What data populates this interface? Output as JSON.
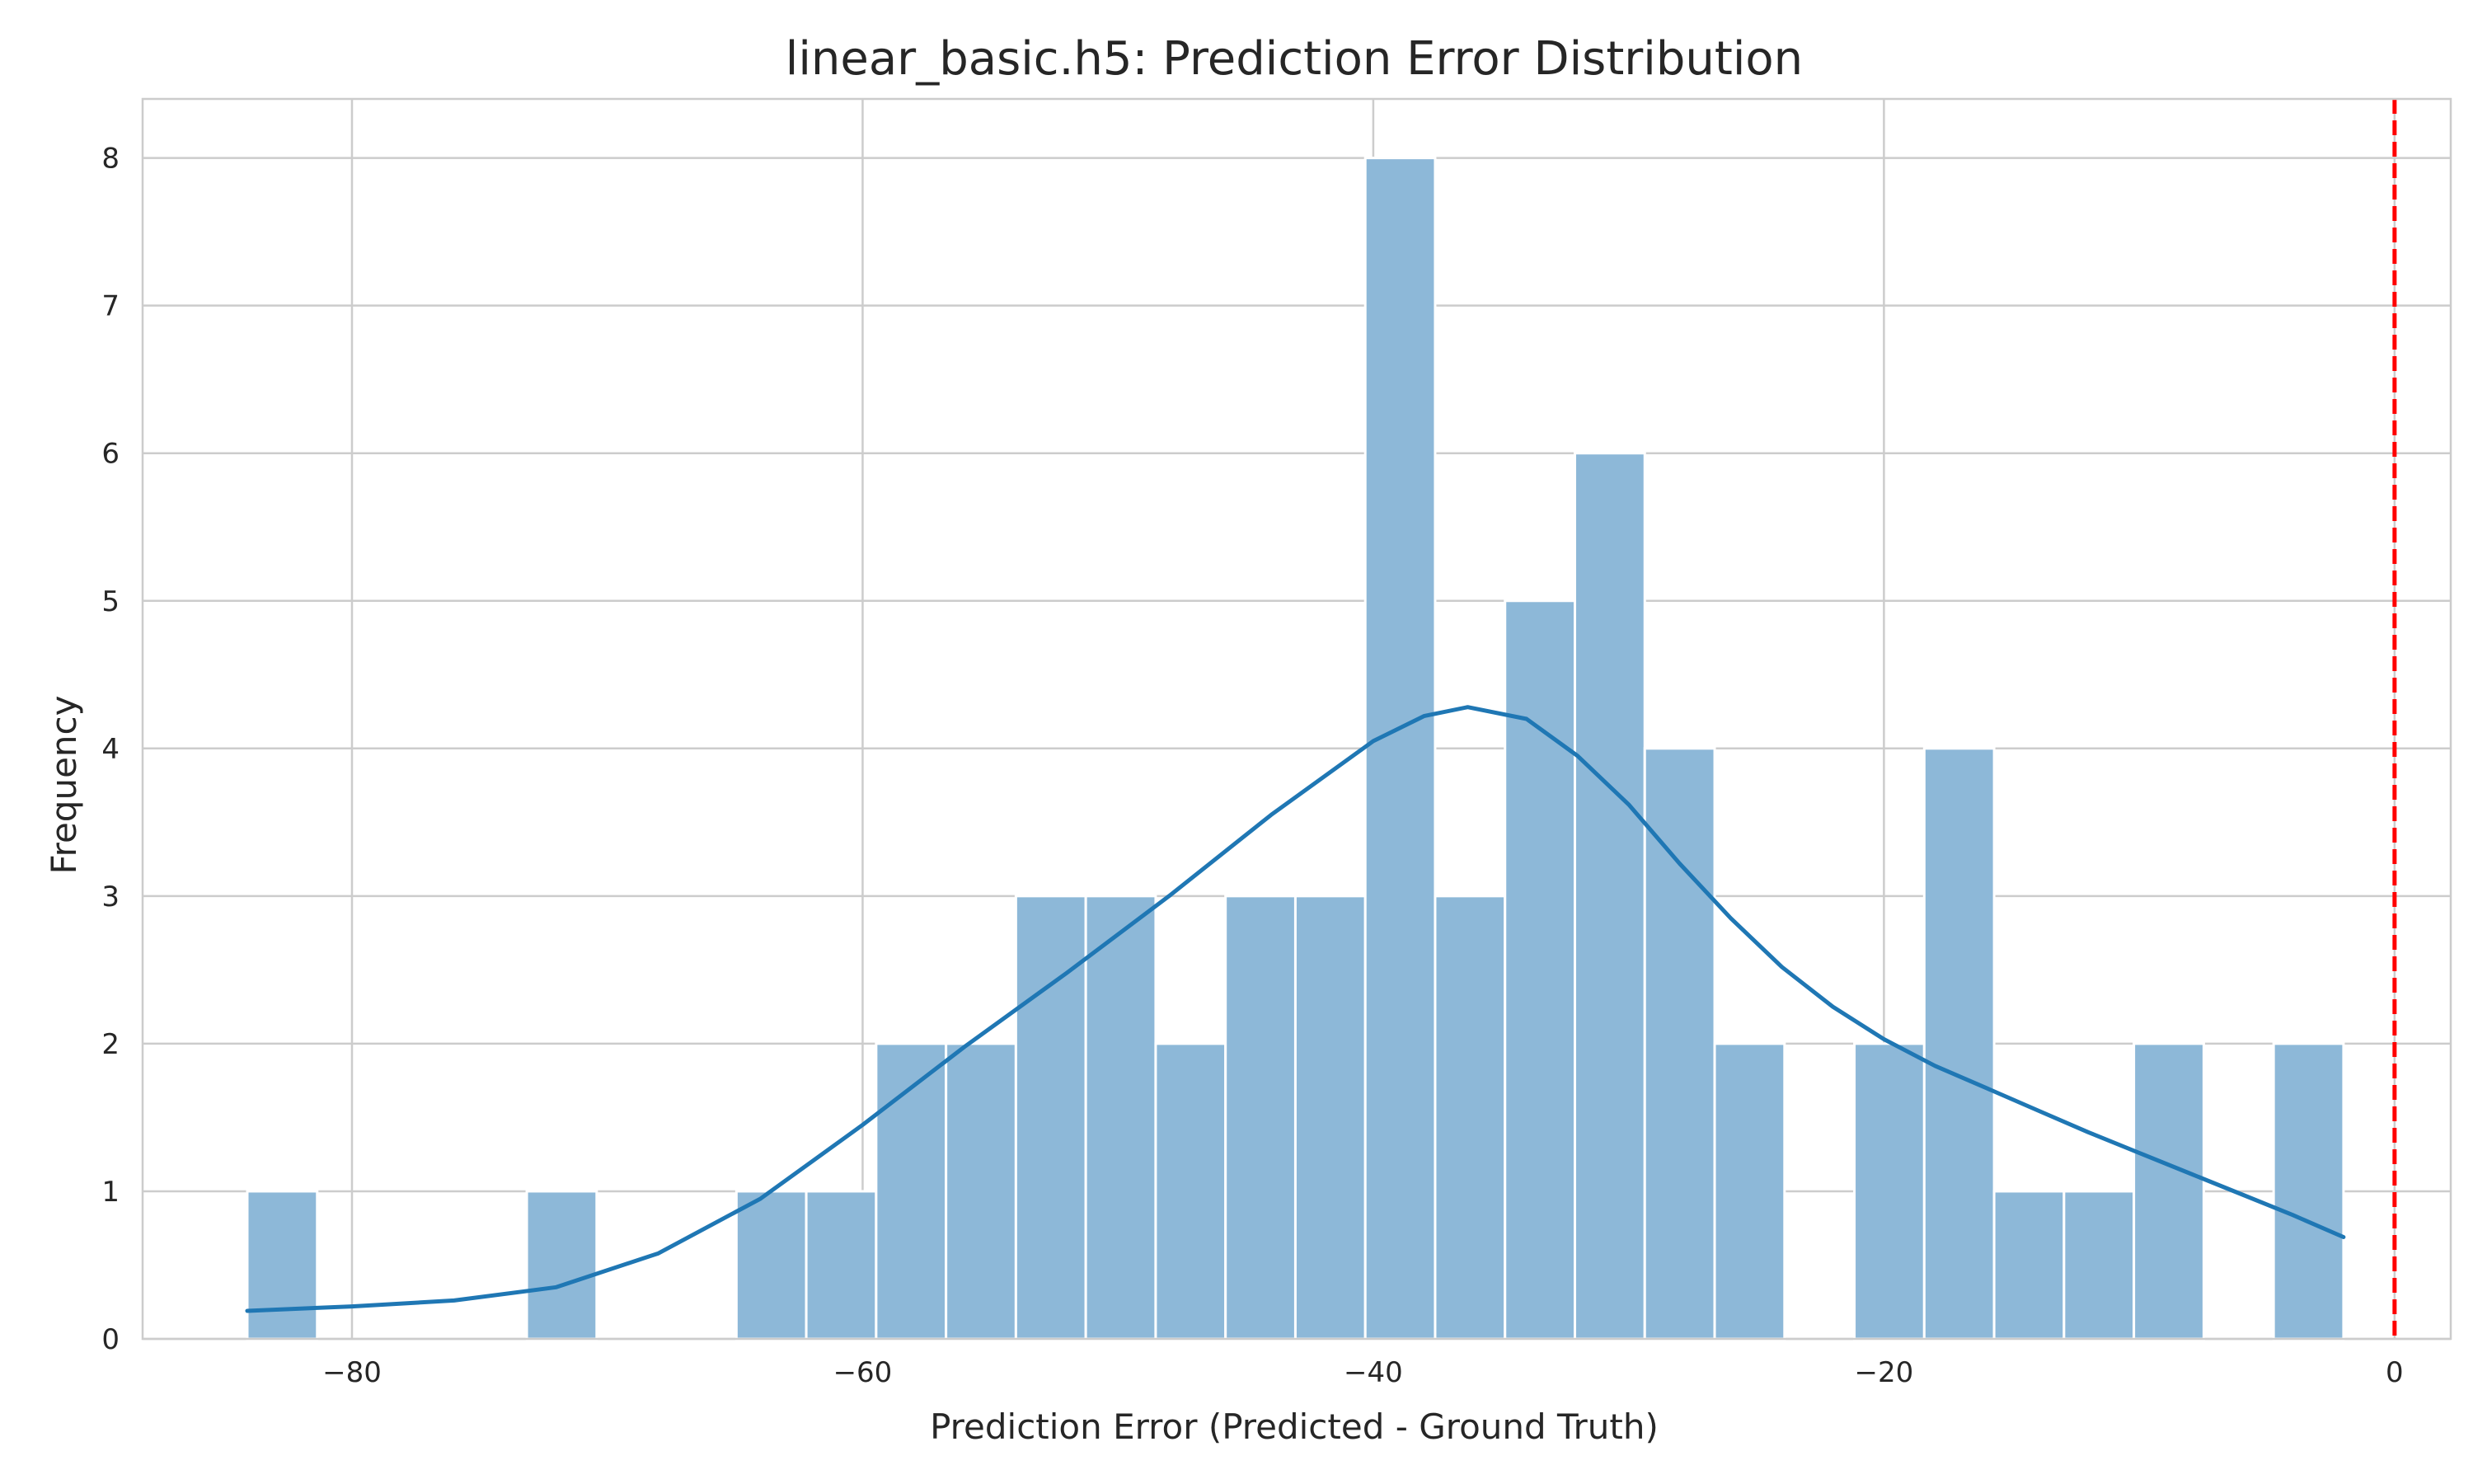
{
  "chart_data": {
    "type": "bar",
    "title": "linear_basic.h5: Prediction Error Distribution",
    "xlabel": "Prediction Error (Predicted - Ground Truth)",
    "ylabel": "Frequency",
    "xlim": [
      -88.2,
      2.2
    ],
    "ylim": [
      0,
      8.4
    ],
    "xticks": [
      -80,
      -60,
      -40,
      -20,
      0
    ],
    "xtick_labels": [
      "−80",
      "−60",
      "−40",
      "−20",
      "0"
    ],
    "yticks": [
      0,
      1,
      2,
      3,
      4,
      5,
      6,
      7,
      8
    ],
    "ytick_labels": [
      "0",
      "1",
      "2",
      "3",
      "4",
      "5",
      "6",
      "7",
      "8"
    ],
    "grid": true,
    "bar_color": "#8db8d8",
    "bin_edges": [
      -84.1,
      -81.363,
      -78.627,
      -75.89,
      -73.153,
      -70.417,
      -67.68,
      -64.943,
      -62.207,
      -59.47,
      -56.733,
      -53.997,
      -51.26,
      -48.523,
      -45.787,
      -43.05,
      -40.313,
      -37.577,
      -34.84,
      -32.103,
      -29.367,
      -26.63,
      -23.893,
      -21.157,
      -18.42,
      -15.683,
      -12.947,
      -10.21,
      -7.473,
      -4.737,
      -2.0
    ],
    "counts": [
      1,
      0,
      0,
      0,
      1,
      0,
      0,
      1,
      1,
      2,
      2,
      3,
      3,
      2,
      3,
      3,
      8,
      3,
      5,
      6,
      4,
      2,
      0,
      2,
      4,
      1,
      1,
      2,
      0,
      2
    ],
    "kde": {
      "color": "#1f77b4",
      "x": [
        -84.1,
        -80,
        -76,
        -72,
        -68,
        -64,
        -60,
        -56,
        -52,
        -48,
        -44,
        -40,
        -38,
        -36.3,
        -34,
        -32,
        -30,
        -28,
        -26,
        -24,
        -22,
        -20,
        -18,
        -16,
        -14,
        -12,
        -10,
        -8,
        -6,
        -4,
        -2
      ],
      "y": [
        0.19,
        0.22,
        0.26,
        0.35,
        0.58,
        0.95,
        1.45,
        1.98,
        2.48,
        3.0,
        3.55,
        4.05,
        4.22,
        4.28,
        4.2,
        3.95,
        3.62,
        3.22,
        2.85,
        2.52,
        2.25,
        2.03,
        1.85,
        1.7,
        1.55,
        1.4,
        1.26,
        1.12,
        0.98,
        0.84,
        0.69
      ]
    },
    "reference_line": {
      "x": 0,
      "color": "#ff0000",
      "style": "dashed"
    }
  }
}
